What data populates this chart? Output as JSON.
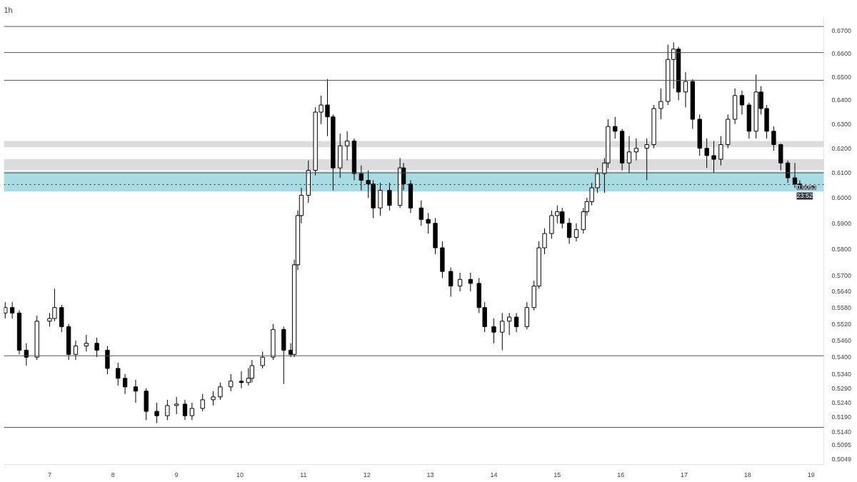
{
  "chart_data": {
    "type": "candlestick",
    "title": "1h",
    "x": [
      6.3,
      6.411,
      6.522,
      6.633,
      6.8,
      7.0,
      7.078,
      7.189,
      7.3,
      7.411,
      7.578,
      7.744,
      7.911,
      8.078,
      8.189,
      8.356,
      8.522,
      8.689,
      8.856,
      9.0,
      9.133,
      9.244,
      9.411,
      9.578,
      9.689,
      9.856,
      10.022,
      10.133,
      10.189,
      10.356,
      10.522,
      10.689,
      10.8,
      10.856,
      10.911,
      10.967,
      11.078,
      11.189,
      11.278,
      11.378,
      11.467,
      11.578,
      11.689,
      11.8,
      11.911,
      12.022,
      12.1,
      12.211,
      12.356,
      12.522,
      12.578,
      12.689,
      12.856,
      12.967,
      13.078,
      13.189,
      13.322,
      13.467,
      13.633,
      13.767,
      13.856,
      14.0,
      14.133,
      14.244,
      14.356,
      14.522,
      14.633,
      14.711,
      14.8,
      14.911,
      15.0,
      15.078,
      15.189,
      15.3,
      15.411,
      15.467,
      15.544,
      15.633,
      15.744,
      15.8,
      15.911,
      16.022,
      16.133,
      16.244,
      16.411,
      16.522,
      16.633,
      16.744,
      16.833,
      16.911,
      17.022,
      17.133,
      17.244,
      17.356,
      17.467,
      17.578,
      17.689,
      17.8,
      17.911,
      18.022,
      18.133,
      18.211,
      18.3,
      18.411,
      18.522,
      18.633,
      18.744,
      18.822
    ],
    "ohlc": [
      [
        0.556,
        0.56,
        0.554,
        0.558
      ],
      [
        0.558,
        0.56,
        0.554,
        0.556
      ],
      [
        0.556,
        0.557,
        0.541,
        0.5425
      ],
      [
        0.5425,
        0.545,
        0.537,
        0.54
      ],
      [
        0.54,
        0.555,
        0.539,
        0.553
      ],
      [
        0.553,
        0.556,
        0.551,
        0.554
      ],
      [
        0.554,
        0.565,
        0.553,
        0.558
      ],
      [
        0.558,
        0.559,
        0.549,
        0.551
      ],
      [
        0.551,
        0.552,
        0.539,
        0.541
      ],
      [
        0.541,
        0.546,
        0.539,
        0.544
      ],
      [
        0.544,
        0.548,
        0.542,
        0.545
      ],
      [
        0.545,
        0.547,
        0.54,
        0.5425
      ],
      [
        0.5425,
        0.544,
        0.534,
        0.536
      ],
      [
        0.536,
        0.538,
        0.53,
        0.5325
      ],
      [
        0.5325,
        0.534,
        0.527,
        0.5295
      ],
      [
        0.5295,
        0.532,
        0.524,
        0.528
      ],
      [
        0.528,
        0.529,
        0.518,
        0.521
      ],
      [
        0.521,
        0.524,
        0.517,
        0.5195
      ],
      [
        0.5195,
        0.525,
        0.518,
        0.523
      ],
      [
        0.523,
        0.526,
        0.52,
        0.5235
      ],
      [
        0.5235,
        0.525,
        0.518,
        0.5195
      ],
      [
        0.5195,
        0.524,
        0.518,
        0.522
      ],
      [
        0.522,
        0.527,
        0.521,
        0.525
      ],
      [
        0.525,
        0.528,
        0.523,
        0.526
      ],
      [
        0.526,
        0.531,
        0.525,
        0.5295
      ],
      [
        0.5295,
        0.534,
        0.528,
        0.5315
      ],
      [
        0.5315,
        0.535,
        0.529,
        0.531
      ],
      [
        0.531,
        0.536,
        0.53,
        0.5325
      ],
      [
        0.5325,
        0.539,
        0.531,
        0.537
      ],
      [
        0.537,
        0.542,
        0.536,
        0.54
      ],
      [
        0.54,
        0.552,
        0.539,
        0.55
      ],
      [
        0.55,
        0.551,
        0.5305,
        0.5425
      ],
      [
        0.5425,
        0.545,
        0.54,
        0.541
      ],
      [
        0.541,
        0.576,
        0.54,
        0.574
      ],
      [
        0.574,
        0.595,
        0.572,
        0.593
      ],
      [
        0.593,
        0.604,
        0.59,
        0.601
      ],
      [
        0.601,
        0.615,
        0.598,
        0.611
      ],
      [
        0.611,
        0.637,
        0.609,
        0.635
      ],
      [
        0.635,
        0.642,
        0.63,
        0.638
      ],
      [
        0.638,
        0.649,
        0.625,
        0.633
      ],
      [
        0.633,
        0.634,
        0.603,
        0.612
      ],
      [
        0.612,
        0.626,
        0.608,
        0.621
      ],
      [
        0.621,
        0.627,
        0.615,
        0.623
      ],
      [
        0.623,
        0.624,
        0.607,
        0.6097
      ],
      [
        0.6097,
        0.613,
        0.603,
        0.607
      ],
      [
        0.607,
        0.611,
        0.6,
        0.6055
      ],
      [
        0.6055,
        0.607,
        0.592,
        0.596
      ],
      [
        0.596,
        0.606,
        0.593,
        0.603
      ],
      [
        0.603,
        0.606,
        0.595,
        0.597
      ],
      [
        0.597,
        0.616,
        0.596,
        0.612
      ],
      [
        0.612,
        0.614,
        0.603,
        0.6055
      ],
      [
        0.6055,
        0.607,
        0.594,
        0.596
      ],
      [
        0.596,
        0.599,
        0.589,
        0.5915
      ],
      [
        0.5915,
        0.594,
        0.586,
        0.59
      ],
      [
        0.59,
        0.592,
        0.578,
        0.5805
      ],
      [
        0.5805,
        0.583,
        0.569,
        0.5715
      ],
      [
        0.5715,
        0.573,
        0.562,
        0.566
      ],
      [
        0.566,
        0.571,
        0.564,
        0.5685
      ],
      [
        0.5685,
        0.571,
        0.564,
        0.567
      ],
      [
        0.567,
        0.569,
        0.556,
        0.558
      ],
      [
        0.558,
        0.56,
        0.549,
        0.551
      ],
      [
        0.551,
        0.554,
        0.545,
        0.549
      ],
      [
        0.549,
        0.556,
        0.5425,
        0.553
      ],
      [
        0.553,
        0.556,
        0.548,
        0.5545
      ],
      [
        0.5545,
        0.556,
        0.549,
        0.551
      ],
      [
        0.551,
        0.56,
        0.55,
        0.558
      ],
      [
        0.558,
        0.568,
        0.557,
        0.566
      ],
      [
        0.566,
        0.583,
        0.565,
        0.5805
      ],
      [
        0.5805,
        0.588,
        0.578,
        0.586
      ],
      [
        0.586,
        0.595,
        0.584,
        0.593
      ],
      [
        0.593,
        0.597,
        0.59,
        0.5945
      ],
      [
        0.5945,
        0.596,
        0.588,
        0.59
      ],
      [
        0.59,
        0.592,
        0.582,
        0.5845
      ],
      [
        0.5845,
        0.59,
        0.583,
        0.5875
      ],
      [
        0.5875,
        0.596,
        0.586,
        0.5945
      ],
      [
        0.5945,
        0.6,
        0.593,
        0.5985
      ],
      [
        0.5985,
        0.606,
        0.597,
        0.604
      ],
      [
        0.604,
        0.612,
        0.602,
        0.6097
      ],
      [
        0.6097,
        0.616,
        0.602,
        0.614
      ],
      [
        0.614,
        0.632,
        0.612,
        0.629
      ],
      [
        0.629,
        0.633,
        0.624,
        0.627
      ],
      [
        0.627,
        0.628,
        0.611,
        0.614
      ],
      [
        0.614,
        0.625,
        0.61,
        0.6185
      ],
      [
        0.6185,
        0.624,
        0.615,
        0.62
      ],
      [
        0.62,
        0.624,
        0.607,
        0.6215
      ],
      [
        0.6215,
        0.638,
        0.62,
        0.6365
      ],
      [
        0.6365,
        0.645,
        0.632,
        0.6395
      ],
      [
        0.6395,
        0.664,
        0.638,
        0.6575
      ],
      [
        0.6575,
        0.665,
        0.645,
        0.662
      ],
      [
        0.662,
        0.663,
        0.64,
        0.6435
      ],
      [
        0.6435,
        0.652,
        0.637,
        0.648
      ],
      [
        0.648,
        0.649,
        0.628,
        0.632
      ],
      [
        0.632,
        0.634,
        0.617,
        0.62
      ],
      [
        0.62,
        0.624,
        0.612,
        0.617
      ],
      [
        0.617,
        0.623,
        0.61,
        0.6155
      ],
      [
        0.6155,
        0.625,
        0.613,
        0.6215
      ],
      [
        0.6215,
        0.634,
        0.62,
        0.632
      ],
      [
        0.632,
        0.645,
        0.63,
        0.642
      ],
      [
        0.642,
        0.644,
        0.634,
        0.638
      ],
      [
        0.638,
        0.639,
        0.624,
        0.627
      ],
      [
        0.627,
        0.651,
        0.624,
        0.6435
      ],
      [
        0.6435,
        0.646,
        0.634,
        0.6365
      ],
      [
        0.6365,
        0.638,
        0.624,
        0.627
      ],
      [
        0.627,
        0.629,
        0.619,
        0.6215
      ],
      [
        0.6215,
        0.622,
        0.611,
        0.614
      ],
      [
        0.614,
        0.615,
        0.606,
        0.608
      ],
      [
        0.608,
        0.614,
        0.604,
        0.6055
      ],
      [
        0.6055,
        0.607,
        0.604,
        0.6053
      ]
    ],
    "color": "#000000",
    "log": true,
    "xlim": [
      6.28,
      19.2
    ],
    "xticks": [
      7,
      8,
      9,
      10,
      11,
      12,
      13,
      14,
      15,
      16,
      17,
      18,
      19
    ],
    "ylim": [
      0.503,
      0.676
    ],
    "yticks": [
      {
        "value": 0.67,
        "label": "0.6700"
      },
      {
        "value": 0.66,
        "label": "0.6600"
      },
      {
        "value": 0.65,
        "label": "0.6500"
      },
      {
        "value": 0.64,
        "label": "0.6400"
      },
      {
        "value": 0.63,
        "label": "0.6300"
      },
      {
        "value": 0.62,
        "label": "0.6200"
      },
      {
        "value": 0.61,
        "label": "0.6100"
      },
      {
        "value": 0.6,
        "label": "0.6000"
      },
      {
        "value": 0.59,
        "label": "0.5900"
      },
      {
        "value": 0.58,
        "label": "0.5800"
      },
      {
        "value": 0.57,
        "label": "0.5700"
      },
      {
        "value": 0.564,
        "label": "0.5640"
      },
      {
        "value": 0.558,
        "label": "0.5580"
      },
      {
        "value": 0.552,
        "label": "0.5520"
      },
      {
        "value": 0.546,
        "label": "0.5460"
      },
      {
        "value": 0.54,
        "label": "0.5400"
      },
      {
        "value": 0.534,
        "label": "0.5340"
      },
      {
        "value": 0.529,
        "label": "0.5290"
      },
      {
        "value": 0.524,
        "label": "0.5240"
      },
      {
        "value": 0.519,
        "label": "0.5190"
      },
      {
        "value": 0.514,
        "label": "0.5140"
      },
      {
        "value": 0.5095,
        "label": "0.5095"
      },
      {
        "value": 0.5049,
        "label": "0.5049"
      }
    ],
    "ref_lines": [
      {
        "axis": "y",
        "value": 0.672,
        "color": "#555555"
      },
      {
        "axis": "y",
        "value": 0.6605,
        "color": "#555555"
      },
      {
        "axis": "y",
        "value": 0.6485,
        "color": "#555555"
      },
      {
        "axis": "y",
        "value": 0.61,
        "color": "#555555"
      },
      {
        "axis": "y",
        "value": 0.5405,
        "color": "#555555"
      },
      {
        "axis": "y",
        "value": 0.5155,
        "color": "#555555"
      },
      {
        "axis": "y",
        "value": 0.6053,
        "label": "0.6053",
        "color": "#2a2e39",
        "line_style": "dotted"
      }
    ],
    "bands": [
      {
        "axis": "y",
        "from": 0.6025,
        "to": 0.6105,
        "color": "#a8dce3"
      },
      {
        "axis": "y",
        "from": 0.611,
        "to": 0.6155,
        "color": "#dcdcde"
      },
      {
        "axis": "y",
        "from": 0.6205,
        "to": 0.623,
        "color": "#dcdcde"
      }
    ],
    "annotations": [
      "23:52"
    ],
    "grid": false
  }
}
